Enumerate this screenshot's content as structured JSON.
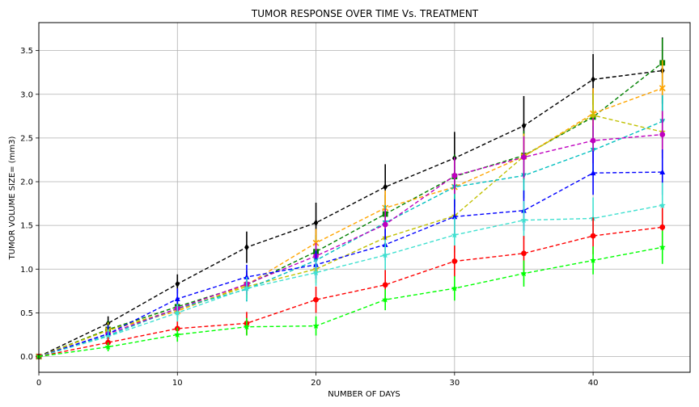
{
  "chart_data": {
    "type": "line",
    "title": "TUMOR RESPONSE OVER TIME Vs. TREATMENT",
    "xlabel": "NUMBER OF DAYS",
    "ylabel": "TUMOR VOLUME SIZE= (mm3)",
    "xlim": [
      0,
      47
    ],
    "ylim": [
      -0.18,
      3.82
    ],
    "xticks": [
      0,
      10,
      20,
      30,
      40
    ],
    "yticks": [
      0.0,
      0.5,
      1.0,
      1.5,
      2.0,
      2.5,
      3.0,
      3.5
    ],
    "grid": true,
    "x": [
      0,
      5,
      10,
      15,
      20,
      25,
      30,
      35,
      40,
      45
    ],
    "series": [
      {
        "color": "#000000",
        "marker": "diamond",
        "values": [
          0,
          0.38,
          0.83,
          1.25,
          1.53,
          1.94,
          2.27,
          2.64,
          3.17,
          3.27
        ],
        "errors": [
          0,
          0.08,
          0.11,
          0.18,
          0.23,
          0.26,
          0.3,
          0.34,
          0.29,
          0.38
        ]
      },
      {
        "color": "#008000",
        "marker": "square",
        "values": [
          0,
          0.31,
          0.57,
          0.82,
          1.2,
          1.63,
          2.06,
          2.3,
          2.74,
          3.36
        ],
        "errors": [
          0,
          0.1,
          0.12,
          0.16,
          0.19,
          0.22,
          0.25,
          0.28,
          0.31,
          0.28
        ]
      },
      {
        "color": "#ffa500",
        "marker": "x",
        "values": [
          0,
          0.3,
          0.52,
          0.82,
          1.3,
          1.7,
          1.94,
          2.29,
          2.78,
          3.07
        ],
        "errors": [
          0,
          0.09,
          0.12,
          0.14,
          0.16,
          0.2,
          0.22,
          0.26,
          0.29,
          0.32
        ]
      },
      {
        "color": "#c0c000",
        "marker": "star",
        "values": [
          0,
          0.3,
          0.54,
          0.8,
          1.0,
          1.36,
          1.61,
          2.29,
          2.76,
          2.57
        ],
        "errors": [
          0,
          0.09,
          0.11,
          0.13,
          0.16,
          0.19,
          0.22,
          0.24,
          0.25,
          0.24
        ]
      },
      {
        "color": "#00bfbf",
        "marker": "triangle-down",
        "values": [
          0,
          0.24,
          0.55,
          0.77,
          1.1,
          1.53,
          1.94,
          2.07,
          2.36,
          2.69
        ],
        "errors": [
          0,
          0.09,
          0.12,
          0.14,
          0.17,
          0.2,
          0.23,
          0.26,
          0.28,
          0.3
        ]
      },
      {
        "color": "#bf00bf",
        "marker": "circle",
        "values": [
          0,
          0.26,
          0.55,
          0.83,
          1.15,
          1.51,
          2.07,
          2.28,
          2.47,
          2.54
        ],
        "errors": [
          0,
          0.08,
          0.1,
          0.12,
          0.15,
          0.18,
          0.21,
          0.24,
          0.26,
          0.27
        ]
      },
      {
        "color": "#0000ff",
        "marker": "triangle-up",
        "values": [
          0,
          0.26,
          0.66,
          0.91,
          1.05,
          1.28,
          1.6,
          1.67,
          2.1,
          2.11
        ],
        "errors": [
          0,
          0.1,
          0.12,
          0.14,
          0.16,
          0.18,
          0.2,
          0.23,
          0.25,
          0.26
        ]
      },
      {
        "color": "#40e0d0",
        "marker": "star",
        "values": [
          0,
          0.23,
          0.5,
          0.78,
          0.96,
          1.16,
          1.39,
          1.56,
          1.58,
          1.73
        ],
        "errors": [
          0,
          0.08,
          0.1,
          0.13,
          0.15,
          0.18,
          0.2,
          0.22,
          0.24,
          0.26
        ]
      },
      {
        "color": "#ff0000",
        "marker": "circle",
        "values": [
          0,
          0.16,
          0.32,
          0.38,
          0.65,
          0.82,
          1.09,
          1.18,
          1.38,
          1.48
        ],
        "errors": [
          0,
          0.06,
          0.08,
          0.13,
          0.15,
          0.17,
          0.18,
          0.2,
          0.21,
          0.22
        ]
      },
      {
        "color": "#00ff00",
        "marker": "star",
        "values": [
          0,
          0.11,
          0.25,
          0.34,
          0.35,
          0.65,
          0.78,
          0.95,
          1.1,
          1.25
        ],
        "errors": [
          0,
          0.05,
          0.08,
          0.1,
          0.11,
          0.12,
          0.14,
          0.15,
          0.16,
          0.19
        ]
      }
    ]
  }
}
